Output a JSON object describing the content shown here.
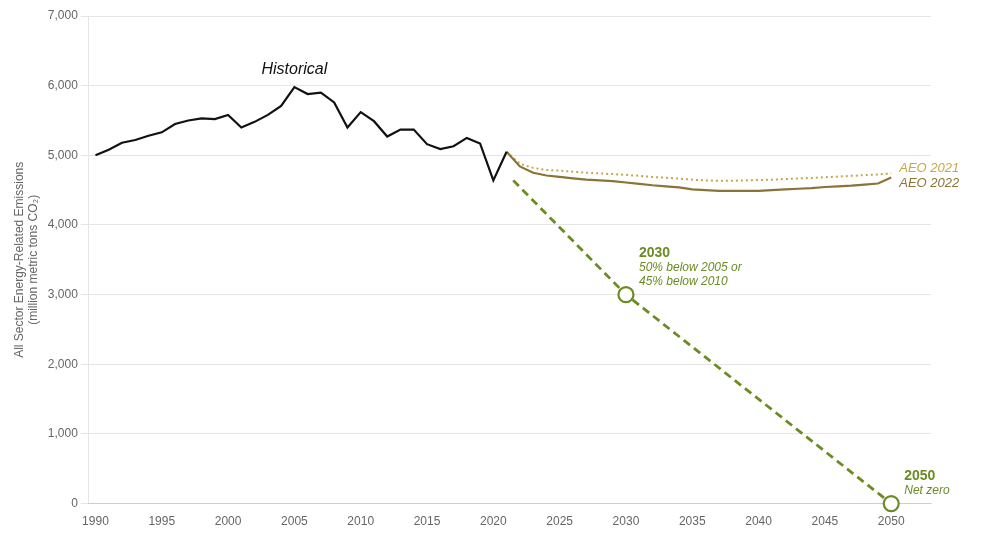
{
  "chart_data": {
    "type": "line",
    "ylabel": "All Sector Energy-Related Emissions\n(million metric tons CO₂)",
    "xlim": [
      1989.5,
      2053
    ],
    "xticks": [
      1990,
      1995,
      2000,
      2005,
      2010,
      2015,
      2020,
      2025,
      2030,
      2035,
      2040,
      2045,
      2050
    ],
    "ylim": [
      0,
      7000
    ],
    "yticks": [
      0,
      {
        "value": 1000,
        "label": "1,000"
      },
      {
        "value": 2000,
        "label": "2,000"
      },
      {
        "value": 3000,
        "label": "3,000"
      },
      {
        "value": 4000,
        "label": "4,000"
      },
      {
        "value": 5000,
        "label": "5,000"
      },
      {
        "value": 6000,
        "label": "6,000"
      },
      {
        "value": 7000,
        "label": "7,000"
      }
    ],
    "grid": true,
    "series": [
      {
        "name": "AEO 2021",
        "color": "#C4A84A",
        "line_style": "dotted",
        "x": [
          2021,
          2022,
          2023,
          2024,
          2025,
          2026,
          2027,
          2028,
          2029,
          2030,
          2031,
          2032,
          2033,
          2034,
          2035,
          2036,
          2037,
          2038,
          2039,
          2040,
          2041,
          2042,
          2043,
          2044,
          2045,
          2046,
          2047,
          2048,
          2049,
          2050
        ],
        "values": [
          5050,
          4880,
          4820,
          4790,
          4780,
          4765,
          4750,
          4740,
          4730,
          4720,
          4705,
          4690,
          4678,
          4665,
          4650,
          4640,
          4635,
          4635,
          4640,
          4645,
          4650,
          4660,
          4668,
          4675,
          4685,
          4695,
          4705,
          4715,
          4725,
          4740
        ]
      },
      {
        "name": "AEO 2022",
        "color": "#8B7336",
        "line_style": "solid",
        "x": [
          2021,
          2022,
          2023,
          2024,
          2025,
          2026,
          2027,
          2028,
          2029,
          2030,
          2031,
          2032,
          2033,
          2034,
          2035,
          2036,
          2037,
          2038,
          2039,
          2040,
          2041,
          2042,
          2043,
          2044,
          2045,
          2046,
          2047,
          2048,
          2049,
          2050
        ],
        "values": [
          5050,
          4840,
          4750,
          4710,
          4690,
          4670,
          4650,
          4640,
          4630,
          4610,
          4590,
          4570,
          4555,
          4540,
          4510,
          4500,
          4490,
          4490,
          4490,
          4490,
          4500,
          4510,
          4520,
          4530,
          4545,
          4555,
          4565,
          4580,
          4595,
          4680
        ]
      },
      {
        "name": "Historical",
        "color": "#111111",
        "line_style": "solid",
        "x": [
          1990,
          1991,
          1992,
          1993,
          1994,
          1995,
          1996,
          1997,
          1998,
          1999,
          2000,
          2001,
          2002,
          2003,
          2004,
          2005,
          2006,
          2007,
          2008,
          2009,
          2010,
          2011,
          2012,
          2013,
          2014,
          2015,
          2016,
          2017,
          2018,
          2019,
          2020,
          2021
        ],
        "values": [
          5000,
          5080,
          5180,
          5220,
          5280,
          5330,
          5450,
          5500,
          5530,
          5520,
          5580,
          5400,
          5480,
          5580,
          5710,
          5980,
          5880,
          5900,
          5760,
          5400,
          5620,
          5490,
          5270,
          5370,
          5370,
          5160,
          5090,
          5130,
          5250,
          5170,
          4640,
          5050
        ]
      },
      {
        "color": "#6B8C23",
        "line_style": "dashed",
        "x": [
          2021.5,
          2030,
          2050
        ],
        "values": [
          4640,
          3000,
          0
        ]
      }
    ],
    "annotations": [
      {
        "x": 2030,
        "y": 3000,
        "marker": "circle",
        "color": "#6B8C23",
        "lines": [
          "2030",
          "50% below 2005 or",
          "45% below 2010"
        ]
      },
      {
        "x": 2050,
        "y": 0,
        "marker": "circle",
        "color": "#6B8C23",
        "lines": [
          "2050",
          "Net zero"
        ]
      }
    ]
  }
}
